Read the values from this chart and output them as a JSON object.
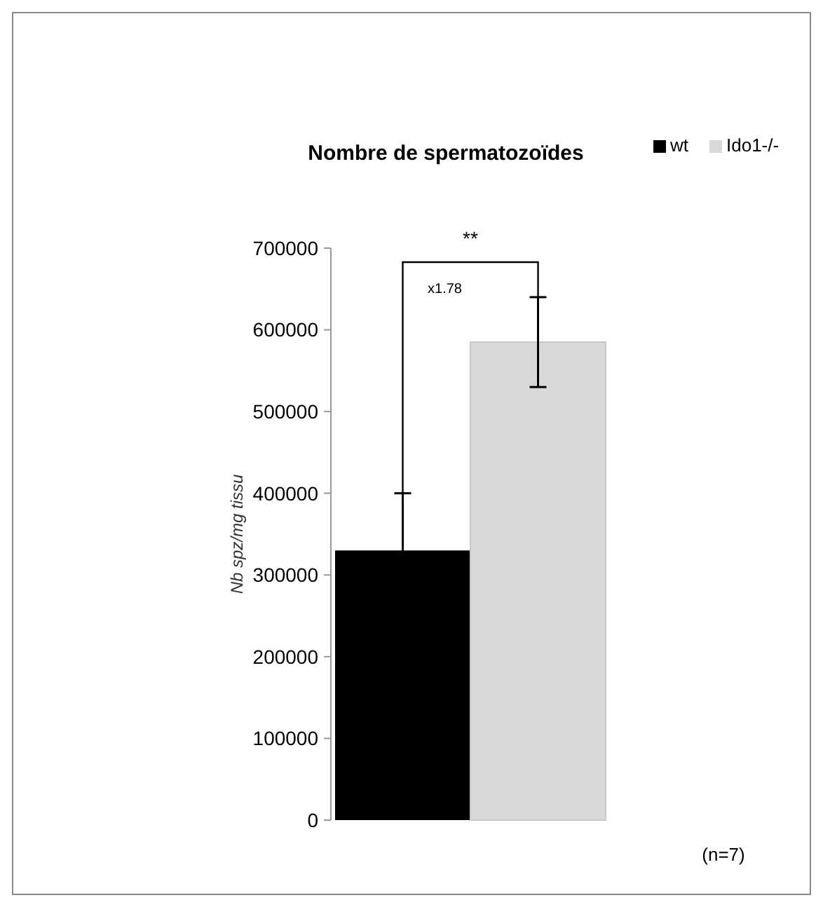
{
  "chart_data": {
    "type": "bar",
    "title": "Nombre de spermatozoïdes",
    "ylabel": "Nb spz/mg tissu",
    "categories": [
      null
    ],
    "series": [
      {
        "name": "wt",
        "color": "#000000",
        "values": [
          330000
        ],
        "errors": [
          70000
        ]
      },
      {
        "name": "Ido1-/-",
        "color": "#d9d9d9",
        "values": [
          585000
        ],
        "errors": [
          55000
        ]
      }
    ],
    "ylim": [
      0,
      700000
    ],
    "yticks": [
      0,
      100000,
      200000,
      300000,
      400000,
      500000,
      600000,
      700000
    ],
    "grid": false,
    "legend": "top right",
    "annotations": [
      "**",
      "x1.78",
      "(n=7)"
    ]
  }
}
